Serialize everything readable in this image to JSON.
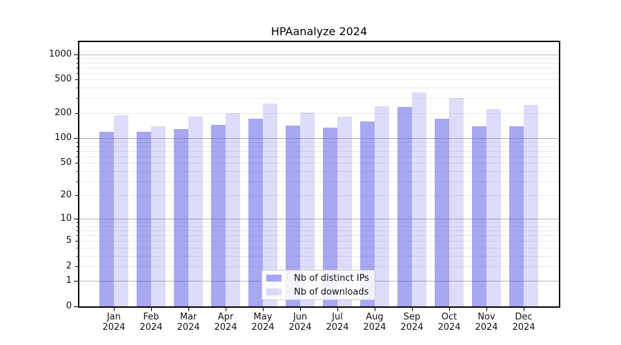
{
  "chart_data": {
    "type": "bar",
    "title": "HPAanalyze 2024",
    "categories": [
      "Jan",
      "Feb",
      "Mar",
      "Apr",
      "May",
      "Jun",
      "Jul",
      "Aug",
      "Sep",
      "Oct",
      "Nov",
      "Dec"
    ],
    "year_label": "2024",
    "yscale": "log1p",
    "ylim": [
      0,
      1400
    ],
    "grid": true,
    "legend_position": "lower center",
    "y_ticks": [
      1000,
      500,
      200,
      100,
      50,
      20,
      10,
      5,
      2,
      1,
      0
    ],
    "series": [
      {
        "name": "Nb of distinct IPs",
        "color": "rgba(87,87,231,0.52)",
        "values": [
          120,
          118,
          128,
          144,
          171,
          141,
          133,
          158,
          237,
          170,
          138,
          138
        ]
      },
      {
        "name": "Nb of downloads",
        "color": "rgba(87,87,231,0.20)",
        "values": [
          189,
          139,
          181,
          199,
          260,
          203,
          181,
          241,
          355,
          300,
          224,
          250
        ]
      }
    ],
    "colors": {
      "bar_base": "#5757e7",
      "grid_major": "#b0b0b0",
      "grid_minor": "#e9e9e9",
      "axis": "#000000"
    }
  }
}
